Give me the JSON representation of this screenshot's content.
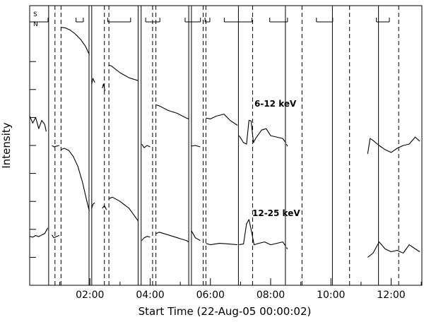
{
  "chart_data": {
    "type": "line",
    "title": "",
    "xlabel": "Start Time (22-Aug-05 00:00:02)",
    "ylabel": "Intensity",
    "x_unit": "hours since 22-Aug-05 00:00:02",
    "xlim": [
      0,
      13.02
    ],
    "x_ticks": [
      {
        "value": 2,
        "label": "02:00"
      },
      {
        "value": 4,
        "label": "04:00"
      },
      {
        "value": 6,
        "label": "06:00"
      },
      {
        "value": 8,
        "label": "08:00"
      },
      {
        "value": 10,
        "label": "10:00"
      },
      {
        "value": 12,
        "label": "12:00"
      }
    ],
    "y_ticks": [
      0,
      1,
      2,
      3,
      4,
      5,
      6,
      7,
      8
    ],
    "ylim": [
      0,
      10
    ],
    "grid": false,
    "annotations": [
      {
        "text": "6-12 keV",
        "series": "6-12 keV"
      },
      {
        "text": "12-25 keV",
        "series": "12-25 keV"
      }
    ],
    "saa_labels": [
      "S",
      "N"
    ],
    "saa_intervals": [
      [
        0.0,
        0.61
      ],
      [
        1.54,
        1.78
      ],
      [
        2.59,
        3.35
      ],
      [
        3.85,
        4.32
      ],
      [
        5.16,
        5.67
      ],
      [
        5.82,
        5.98
      ],
      [
        6.46,
        7.38
      ],
      [
        7.97,
        8.56
      ],
      [
        9.52,
        10.06
      ],
      [
        11.51,
        11.94
      ]
    ],
    "night_boundaries_solid": [
      0.63,
      1.97,
      2.06,
      3.6,
      3.7,
      5.28,
      5.37,
      6.93,
      8.49,
      10.05,
      11.58
    ],
    "day_boundaries_dashed": [
      0.84,
      1.04,
      2.48,
      2.63,
      4.08,
      4.19,
      5.76,
      5.85,
      7.4,
      9.04,
      10.62,
      12.25
    ],
    "series": [
      {
        "name": "6-12 keV",
        "segments": [
          {
            "x": [
              0.0,
              0.1,
              0.2,
              0.3,
              0.4,
              0.5,
              0.55
            ],
            "y": [
              6.05,
              5.8,
              6.0,
              5.6,
              5.9,
              5.75,
              5.5
            ]
          },
          {
            "x": [
              0.74,
              0.8,
              0.9,
              0.98
            ],
            "y": [
              5.0,
              4.95,
              4.98,
              5.0
            ]
          },
          {
            "x": [
              1.04,
              1.1,
              1.2,
              1.35,
              1.5,
              1.7,
              1.85,
              1.98
            ],
            "y": [
              9.22,
              9.22,
              9.2,
              9.12,
              9.0,
              8.78,
              8.55,
              8.25
            ]
          },
          {
            "x": [
              2.06,
              2.1,
              2.16
            ],
            "y": [
              7.2,
              7.4,
              7.25
            ]
          },
          {
            "x": [
              2.41,
              2.45,
              2.5
            ],
            "y": [
              7.05,
              7.2,
              6.95
            ]
          },
          {
            "x": [
              2.63,
              2.7,
              3.0,
              3.3,
              3.6
            ],
            "y": [
              7.87,
              7.85,
              7.6,
              7.42,
              7.32
            ]
          },
          {
            "x": [
              3.72,
              3.8,
              3.9,
              4.0
            ],
            "y": [
              5.05,
              4.92,
              5.0,
              4.95
            ]
          },
          {
            "x": [
              4.2,
              4.3,
              4.6,
              4.9,
              5.2,
              5.28
            ],
            "y": [
              6.45,
              6.42,
              6.25,
              6.15,
              5.98,
              5.95
            ]
          },
          {
            "x": [
              5.37,
              5.5,
              5.66
            ],
            "y": [
              4.98,
              5.0,
              4.95
            ]
          },
          {
            "x": [
              5.85,
              6.0,
              6.2,
              6.45,
              6.65,
              6.9
            ],
            "y": [
              5.98,
              5.95,
              6.05,
              6.12,
              5.9,
              5.72
            ]
          },
          {
            "x": [
              6.95,
              7.1,
              7.2,
              7.28,
              7.35,
              7.43,
              7.5,
              7.7,
              7.85,
              8.0,
              8.2,
              8.4,
              8.5
            ],
            "y": [
              5.35,
              5.1,
              5.05,
              5.9,
              5.88,
              5.1,
              5.25,
              5.55,
              5.6,
              5.35,
              5.3,
              5.25,
              5.1
            ]
          },
          {
            "x": [
              8.52,
              8.56
            ],
            "y": [
              5.05,
              4.97
            ]
          },
          {
            "x": [
              11.22,
              11.3,
              11.4,
              11.6,
              11.8,
              12.0,
              12.2,
              12.4,
              12.6,
              12.8,
              12.95
            ],
            "y": [
              4.7,
              5.25,
              5.18,
              5.0,
              4.85,
              4.75,
              4.9,
              5.0,
              5.05,
              5.3,
              5.15
            ]
          }
        ]
      },
      {
        "name": "12-25 keV",
        "segments": [
          {
            "x": [
              0.0,
              0.1,
              0.2,
              0.3,
              0.4,
              0.5,
              0.6
            ],
            "y": [
              1.75,
              1.72,
              1.78,
              1.74,
              1.8,
              1.85,
              2.05
            ]
          },
          {
            "x": [
              0.74,
              0.8,
              0.9,
              0.98
            ],
            "y": [
              1.8,
              1.7,
              1.75,
              1.78
            ]
          },
          {
            "x": [
              1.04,
              1.15,
              1.3,
              1.45,
              1.6,
              1.75,
              1.9,
              1.98
            ],
            "y": [
              4.85,
              4.9,
              4.82,
              4.6,
              4.25,
              3.7,
              3.0,
              2.65
            ]
          },
          {
            "x": [
              2.06,
              2.1,
              2.16
            ],
            "y": [
              2.75,
              2.9,
              2.95
            ]
          },
          {
            "x": [
              2.41,
              2.48,
              2.55
            ],
            "y": [
              2.75,
              2.85,
              2.7
            ]
          },
          {
            "x": [
              2.63,
              2.75,
              3.0,
              3.3,
              3.6
            ],
            "y": [
              3.1,
              3.15,
              3.0,
              2.75,
              2.3
            ]
          },
          {
            "x": [
              3.72,
              3.8,
              3.9,
              4.0
            ],
            "y": [
              1.6,
              1.7,
              1.75,
              1.72
            ]
          },
          {
            "x": [
              4.2,
              4.3,
              4.6,
              4.9,
              5.2,
              5.28
            ],
            "y": [
              1.85,
              1.9,
              1.8,
              1.7,
              1.6,
              1.55
            ]
          },
          {
            "x": [
              5.37,
              5.5,
              5.66
            ],
            "y": [
              1.95,
              1.7,
              1.6
            ]
          },
          {
            "x": [
              5.85,
              6.0,
              6.3,
              6.6,
              6.9
            ],
            "y": [
              1.5,
              1.45,
              1.5,
              1.48,
              1.45
            ]
          },
          {
            "x": [
              6.95,
              7.1,
              7.2,
              7.28,
              7.35,
              7.45,
              7.6,
              7.8,
              8.0,
              8.2,
              8.4,
              8.5
            ],
            "y": [
              1.45,
              1.48,
              2.2,
              2.35,
              2.0,
              1.45,
              1.5,
              1.55,
              1.45,
              1.5,
              1.55,
              1.4
            ]
          },
          {
            "x": [
              8.52,
              8.56
            ],
            "y": [
              1.35,
              1.3
            ]
          },
          {
            "x": [
              11.22,
              11.4,
              11.6,
              11.8,
              12.0,
              12.2,
              12.4,
              12.6,
              12.8,
              12.95
            ],
            "y": [
              1.0,
              1.15,
              1.55,
              1.3,
              1.2,
              1.25,
              1.15,
              1.45,
              1.3,
              1.2
            ]
          }
        ]
      }
    ]
  }
}
